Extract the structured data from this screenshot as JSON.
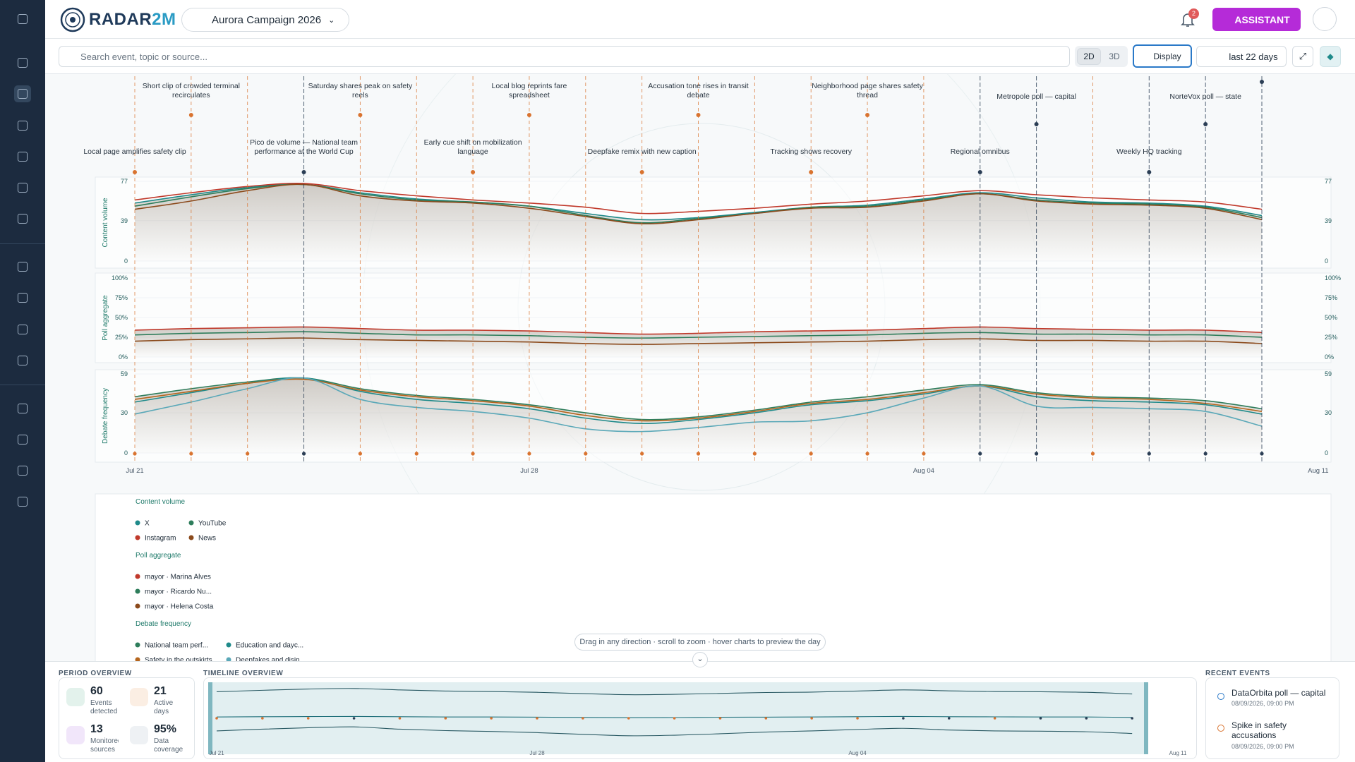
{
  "header": {
    "logo_main": "RADAR",
    "logo_accent": "2M",
    "campaign": "Aurora Campaign 2026",
    "notifications": 2,
    "assistant": "ASSISTANT"
  },
  "toolbar": {
    "search_placeholder": "Search event, topic or source...",
    "view_modes": [
      "2D",
      "3D"
    ],
    "display": "Display",
    "range": "last 22 days"
  },
  "events": {
    "labels": [
      "Local page amplifies safety clip",
      "Short clip of crowded terminal recirculates",
      null,
      "Pico de volume — National team performance at the World Cup",
      "Saturday shares peak on safety reels",
      null,
      "Early cue shift on mobilization language",
      "Local blog reprints fare spreadsheet",
      null,
      "Deepfake remix with new caption",
      "Accusation tone rises in transit debate",
      null,
      "Tracking shows recovery",
      "Neighborhood page shares safety thread",
      null,
      "Regional omnibus",
      "Metropole poll — capital",
      null,
      "Weekly HQ tracking",
      "NorteVox poll — state",
      null,
      null
    ],
    "colors": [
      "#d9732f",
      "#d9732f",
      "#d9732f",
      "#2b3e55",
      "#d9732f",
      "#d9732f",
      "#d9732f",
      "#d9732f",
      "#d9732f",
      "#d9732f",
      "#d9732f",
      "#d9732f",
      "#d9732f",
      "#d9732f",
      "#d9732f",
      "#2b3e55",
      "#2b3e55",
      "#d9732f",
      "#2b3e55",
      "#2b3e55",
      "#2b3e55",
      null
    ]
  },
  "chart_data": [
    {
      "type": "line",
      "y_label": "Content volume",
      "categories": [
        "Jul 21",
        null,
        null,
        null,
        null,
        null,
        null,
        "Jul 28",
        null,
        null,
        null,
        null,
        null,
        null,
        "Aug 04",
        null,
        null,
        null,
        null,
        null,
        null,
        "Aug 11"
      ],
      "ylim": [
        0,
        77
      ],
      "yticks": [
        0,
        39,
        77
      ],
      "series": [
        {
          "name": "X",
          "color": "#1f8a8a",
          "values": [
            56,
            64,
            71,
            74,
            66,
            60,
            57,
            53,
            46,
            40,
            42,
            47,
            52,
            54,
            60,
            66,
            61,
            57,
            56,
            53,
            44,
            null
          ]
        },
        {
          "name": "YouTube",
          "color": "#2e7d5b",
          "values": [
            53,
            62,
            70,
            74,
            65,
            59,
            57,
            53,
            44,
            37,
            41,
            46,
            52,
            53,
            59,
            65,
            59,
            56,
            55,
            52,
            42,
            null
          ]
        },
        {
          "name": "Instagram",
          "color": "#c0392b",
          "values": [
            59,
            66,
            72,
            75,
            68,
            63,
            59,
            56,
            52,
            46,
            48,
            51,
            55,
            58,
            63,
            68,
            64,
            61,
            59,
            57,
            50,
            null
          ]
        },
        {
          "name": "News",
          "color": "#8b4a1c",
          "values": [
            50,
            58,
            68,
            74,
            63,
            58,
            56,
            51,
            43,
            36,
            40,
            46,
            51,
            52,
            58,
            65,
            58,
            55,
            54,
            51,
            40,
            null
          ]
        }
      ]
    },
    {
      "type": "line",
      "y_label": "Poll aggregate",
      "categories": [
        "Jul 21",
        null,
        null,
        null,
        null,
        null,
        null,
        "Jul 28",
        null,
        null,
        null,
        null,
        null,
        null,
        "Aug 04",
        null,
        null,
        null,
        null,
        null,
        null,
        "Aug 11"
      ],
      "ylim": [
        0,
        100
      ],
      "yticks": [
        {
          "value": 0,
          "label": "0%"
        },
        {
          "value": 25,
          "label": "25%"
        },
        {
          "value": 50,
          "label": "50%"
        },
        {
          "value": 75,
          "label": "75%"
        },
        {
          "value": 100,
          "label": "100%"
        }
      ],
      "series": [
        {
          "name": "mayor · Marina Alves",
          "color": "#c0392b",
          "values": [
            34,
            36,
            37,
            38,
            36,
            34,
            34,
            33,
            31,
            29,
            30,
            32,
            33,
            34,
            36,
            38,
            36,
            35,
            34,
            34,
            31,
            null
          ]
        },
        {
          "name": "mayor · Ricardo Nu...",
          "color": "#2e7d5b",
          "values": [
            28,
            30,
            31,
            32,
            30,
            28,
            28,
            27,
            25,
            24,
            25,
            26,
            27,
            28,
            30,
            31,
            29,
            29,
            28,
            28,
            25,
            null
          ]
        },
        {
          "name": "mayor · Helena Costa",
          "color": "#8b4a1c",
          "values": [
            20,
            22,
            23,
            24,
            22,
            21,
            20,
            19,
            17,
            16,
            17,
            18,
            19,
            20,
            22,
            23,
            21,
            21,
            20,
            20,
            17,
            null
          ]
        }
      ]
    },
    {
      "type": "line",
      "y_label": "Debate frequency",
      "categories": [
        "Jul 21",
        null,
        null,
        null,
        null,
        null,
        null,
        "Jul 28",
        null,
        null,
        null,
        null,
        null,
        null,
        "Aug 04",
        null,
        null,
        null,
        null,
        null,
        null,
        "Aug 11"
      ],
      "ylim": [
        0,
        59
      ],
      "yticks": [
        0,
        30,
        59
      ],
      "series": [
        {
          "name": "National team perf...",
          "color": "#2e7d5b",
          "values": [
            42,
            48,
            53,
            56,
            48,
            43,
            40,
            36,
            30,
            25,
            27,
            32,
            38,
            42,
            47,
            51,
            45,
            42,
            41,
            39,
            33,
            null
          ]
        },
        {
          "name": "Education and dayc...",
          "color": "#1f8a8a",
          "values": [
            38,
            45,
            52,
            56,
            46,
            40,
            37,
            33,
            26,
            22,
            25,
            30,
            36,
            39,
            44,
            50,
            42,
            39,
            38,
            36,
            29,
            null
          ]
        },
        {
          "name": "Safety in the outskirts",
          "color": "#b5651d",
          "values": [
            40,
            46,
            52,
            55,
            47,
            42,
            39,
            35,
            28,
            24,
            26,
            31,
            37,
            40,
            45,
            50,
            44,
            41,
            40,
            37,
            31,
            null
          ]
        },
        {
          "name": "Deepfakes and disin...",
          "color": "#5aa8b8",
          "values": [
            29,
            38,
            48,
            56,
            40,
            34,
            31,
            26,
            18,
            16,
            19,
            23,
            24,
            30,
            41,
            50,
            35,
            34,
            33,
            31,
            20,
            null
          ]
        }
      ]
    }
  ],
  "hint": "Drag in any direction · scroll to zoom · hover charts to preview the day",
  "period_overview": {
    "title": "PERIOD OVERVIEW",
    "stats": [
      {
        "value": 60,
        "label": "Events detected"
      },
      {
        "value": 21,
        "label": "Active days"
      },
      {
        "value": 13,
        "label": "Monitored sources"
      },
      {
        "value": "95%",
        "label": "Data coverage"
      }
    ]
  },
  "timeline_overview": {
    "title": "TIMELINE OVERVIEW"
  },
  "recent_events": {
    "title": "RECENT EVENTS",
    "items": [
      {
        "title": "DataOrbita poll — capital",
        "time": "08/09/2026, 09:00 PM"
      },
      {
        "title": "Spike in safety accusations",
        "time": "08/09/2026, 09:00 PM"
      }
    ]
  }
}
